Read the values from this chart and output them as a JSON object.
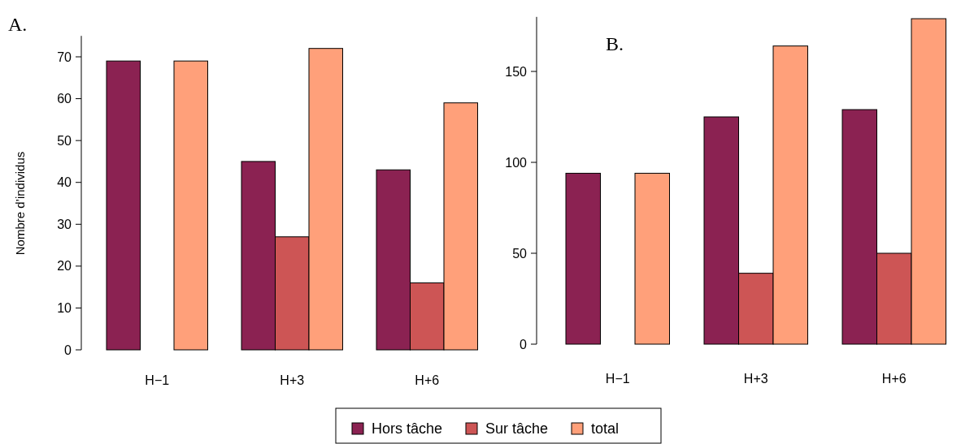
{
  "chart_data": [
    {
      "type": "bar",
      "title": "A.",
      "ylabel": "Nombre d’individus",
      "categories": [
        "H−1",
        "H+3",
        "H+6"
      ],
      "ylim": [
        0,
        75
      ],
      "yticks": [
        0,
        10,
        20,
        30,
        40,
        50,
        60,
        70
      ],
      "legend": "bottom",
      "series": [
        {
          "name": "Hors tâche",
          "color": "#8b2252",
          "values": [
            69,
            45,
            43
          ]
        },
        {
          "name": "Sur tâche",
          "color": "#cd5555",
          "values": [
            null,
            27,
            16
          ]
        },
        {
          "name": "total",
          "color": "#ffa07a",
          "values": [
            69,
            72,
            59
          ]
        }
      ]
    },
    {
      "type": "bar",
      "title": "B.",
      "categories": [
        "H−1",
        "H+3",
        "H+6"
      ],
      "ylim": [
        0,
        180
      ],
      "yticks": [
        0,
        50,
        100,
        150
      ],
      "series": [
        {
          "color": "#8b2252",
          "values": [
            94,
            125,
            129
          ]
        },
        {
          "color": "#cd5555",
          "values": [
            null,
            39,
            50
          ]
        },
        {
          "color": "#ffa07a",
          "values": [
            94,
            164,
            179
          ]
        }
      ]
    }
  ]
}
